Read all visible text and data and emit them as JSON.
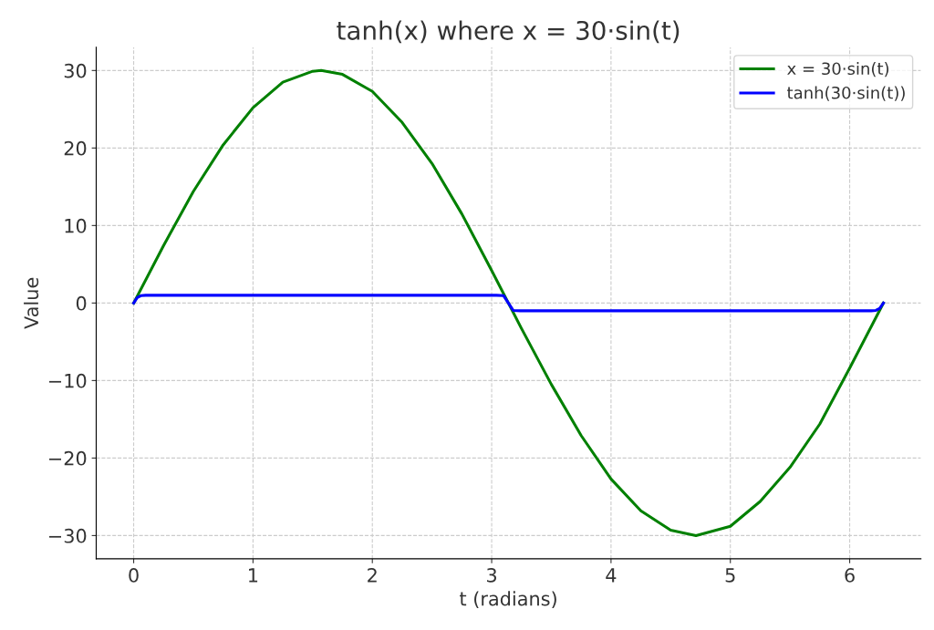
{
  "chart_data": {
    "type": "line",
    "title": "tanh(x) where x = 30·sin(t)",
    "xlabel": "t (radians)",
    "ylabel": "Value",
    "series": [
      {
        "name": "x = 30·sin(t)",
        "color": "#008000",
        "x": [
          0,
          0.25,
          0.5,
          0.75,
          1,
          1.25,
          1.5,
          1.571,
          1.75,
          2,
          2.25,
          2.5,
          2.75,
          3,
          3.25,
          3.5,
          3.75,
          4,
          4.25,
          4.5,
          4.712,
          5,
          5.25,
          5.5,
          5.75,
          6,
          6.283
        ],
        "values": [
          0,
          7.4,
          14.4,
          20.4,
          25.2,
          28.5,
          29.9,
          30,
          29.5,
          27.3,
          23.3,
          18.0,
          11.5,
          4.2,
          -3.3,
          -10.5,
          -17.1,
          -22.7,
          -26.8,
          -29.3,
          -30,
          -28.8,
          -25.6,
          -21.2,
          -15.6,
          -8.4,
          0
        ]
      },
      {
        "name": "tanh(30·sin(t))",
        "color": "#0000ff",
        "x": [
          0,
          0.03,
          0.06,
          0.1,
          3.04,
          3.1,
          3.14,
          3.18,
          3.24,
          6.18,
          6.22,
          6.25,
          6.283
        ],
        "values": [
          0,
          0.7,
          0.95,
          1,
          1,
          0.95,
          0,
          -0.95,
          -1,
          -1,
          -0.95,
          -0.7,
          0
        ]
      }
    ],
    "xlim": [
      -0.314,
      6.597
    ],
    "ylim": [
      -33,
      33
    ],
    "xticks": [
      0,
      1,
      2,
      3,
      4,
      5,
      6
    ],
    "yticks": [
      {
        "value": -30,
        "label": "−30"
      },
      {
        "value": -20,
        "label": "−20"
      },
      {
        "value": -10,
        "label": "−10"
      },
      0,
      10,
      20,
      30
    ],
    "grid": true,
    "legend": "top right",
    "line_style": "solid",
    "marker": "none"
  }
}
